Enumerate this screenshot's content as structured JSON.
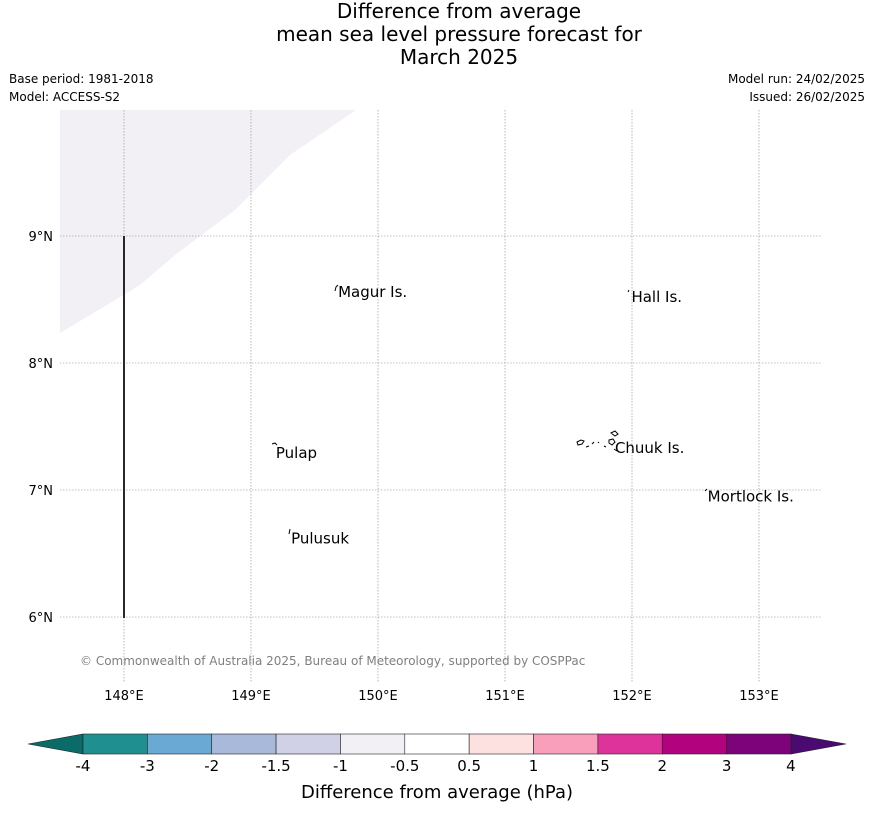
{
  "title": {
    "line1": "Difference from average",
    "line2": "mean sea level pressure forecast for",
    "line3": "March 2025"
  },
  "meta": {
    "base_period": "Base period: 1981-2018",
    "model": "Model: ACCESS-S2",
    "model_run": "Model run: 24/02/2025",
    "issued": "Issued: 26/02/2025"
  },
  "map": {
    "lon_ticks": [
      "148°E",
      "149°E",
      "150°E",
      "151°E",
      "152°E",
      "153°E"
    ],
    "lat_ticks": [
      "9°N",
      "8°N",
      "7°N",
      "6°N"
    ],
    "places": [
      {
        "name": "Magur Is.",
        "lon": 149.67,
        "lat": 8.56
      },
      {
        "name": "Hall Is.",
        "lon": 151.98,
        "lat": 8.52
      },
      {
        "name": "Pulap",
        "lon": 149.18,
        "lat": 7.29
      },
      {
        "name": "Chuuk Is.",
        "lon": 151.85,
        "lat": 7.33
      },
      {
        "name": "Mortlock Is.",
        "lon": 152.58,
        "lat": 6.95
      },
      {
        "name": "Pulusuk",
        "lon": 149.3,
        "lat": 6.62
      }
    ],
    "shaded_region_category": "-1 to -0.5",
    "copyright": "© Commonwealth of Australia 2025, Bureau of Meteorology, supported by COSPPac",
    "grid": true
  },
  "colorbar": {
    "title": "Difference from average (hPa)",
    "tick_labels": [
      "-4",
      "-3",
      "-2",
      "-1.5",
      "-1",
      "-0.5",
      "0.5",
      "1",
      "1.5",
      "2",
      "3",
      "4"
    ],
    "colors": [
      "#208f8f",
      "#69a9d3",
      "#a8b9da",
      "#d0d0e6",
      "#f2eff5",
      "#ffffff",
      "#fde0e0",
      "#f99fbb",
      "#de339a",
      "#b2027e",
      "#7c037a"
    ],
    "under_color": "#0b6b68",
    "over_color": "#4a0a70"
  }
}
